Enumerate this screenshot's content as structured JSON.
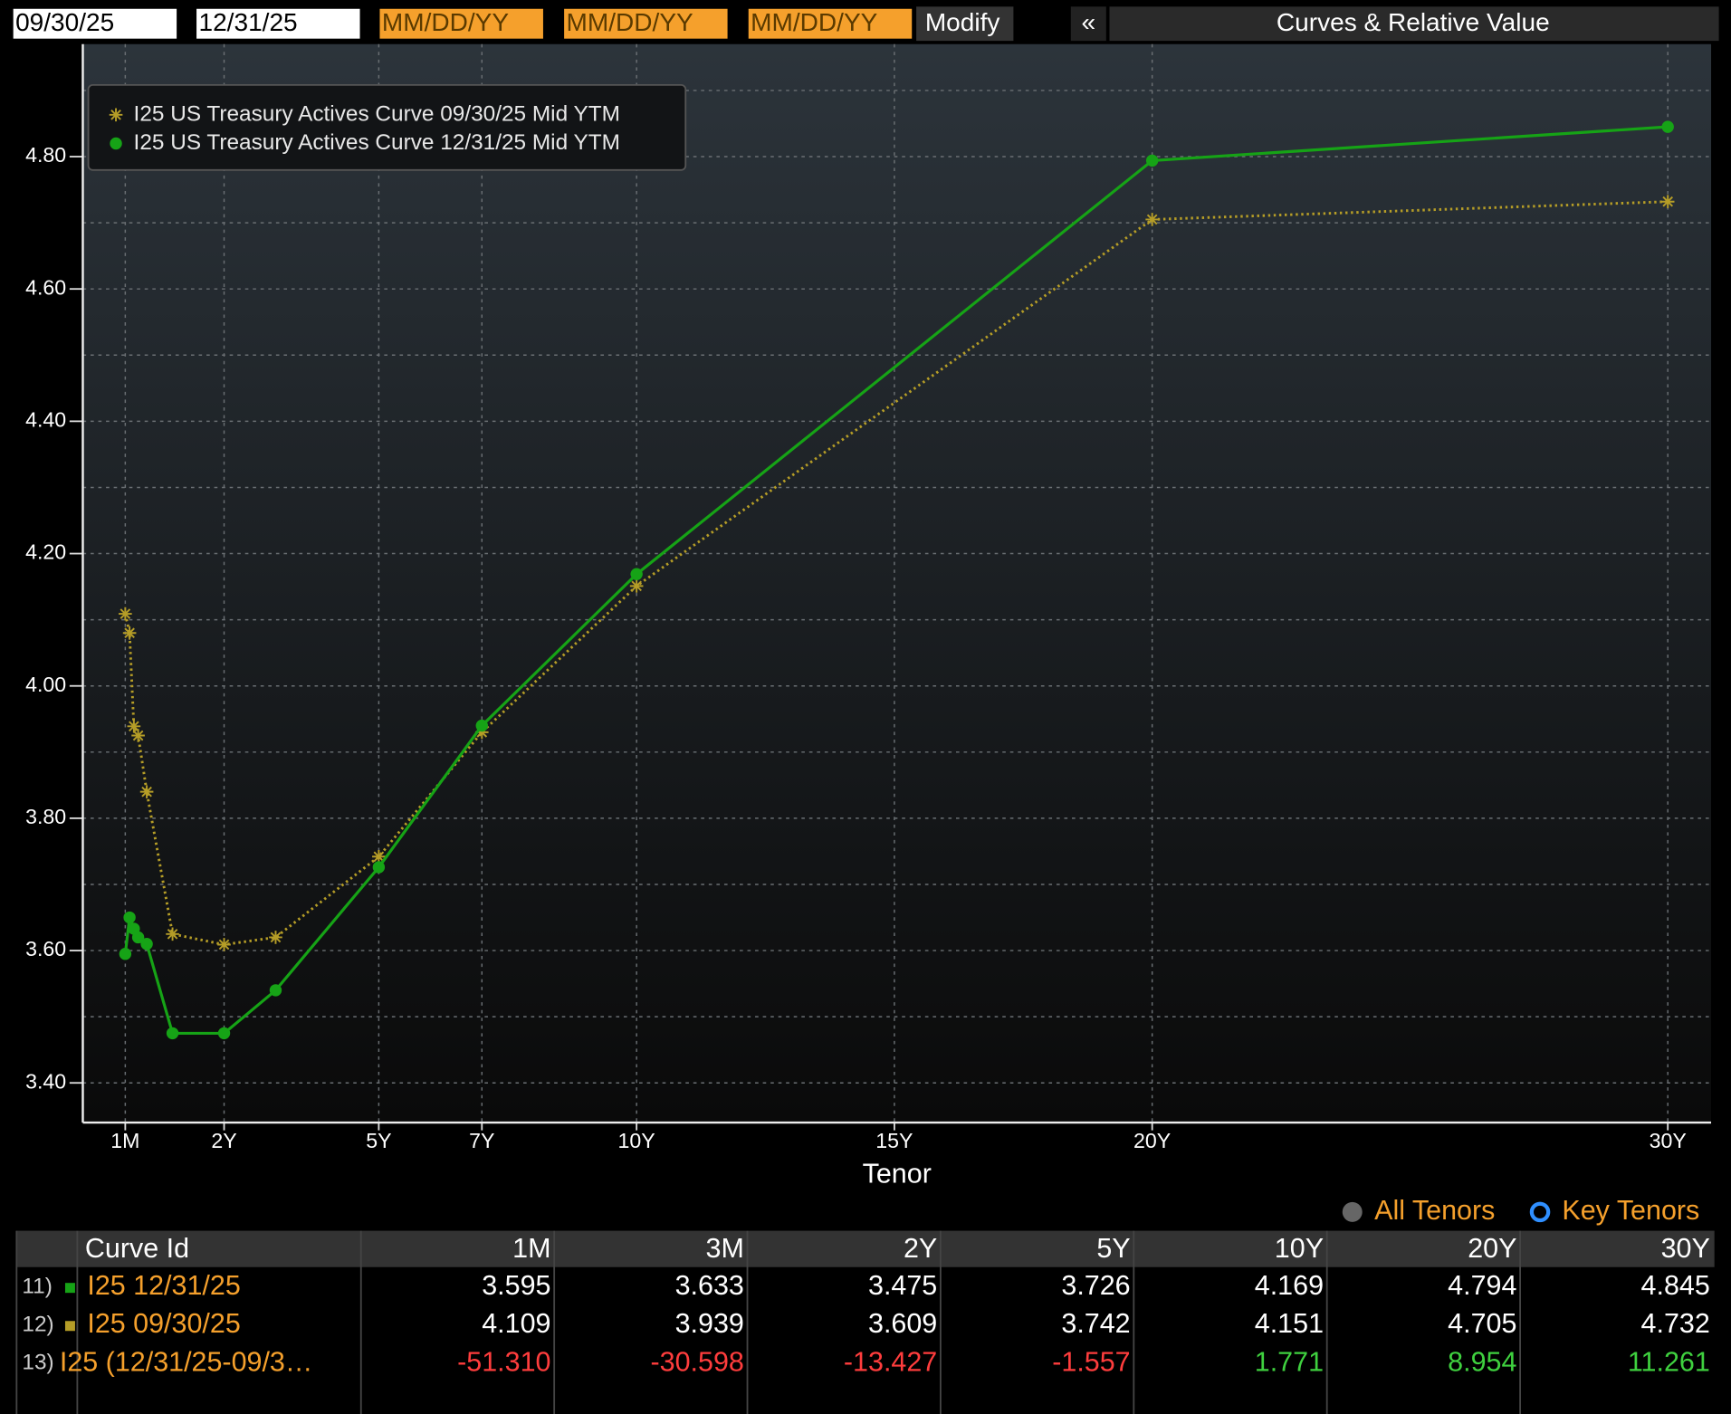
{
  "toolbar": {
    "date1": "09/30/25",
    "date2": "12/31/25",
    "date_placeholders": [
      "MM/DD/YY",
      "MM/DD/YY",
      "MM/DD/YY"
    ],
    "modify": "Modify",
    "collapse": "«",
    "title": "Curves & Relative Value"
  },
  "chart_data": {
    "type": "line",
    "x_label": "Tenor",
    "x": [
      0.0833,
      0.1667,
      0.25,
      0.3333,
      0.5,
      1,
      2,
      3,
      5,
      7,
      10,
      20,
      30
    ],
    "series": [
      {
        "name": "I25 US Treasury Actives Curve 09/30/25 Mid YTM",
        "color": "#b59d27",
        "marker": "asterisk",
        "style": "dotted",
        "values": [
          4.109,
          4.08,
          3.939,
          3.925,
          3.84,
          3.625,
          3.609,
          3.62,
          3.742,
          3.93,
          4.151,
          4.705,
          4.732
        ]
      },
      {
        "name": "I25 US Treasury Actives Curve 12/31/25 Mid YTM",
        "color": "#16a316",
        "marker": "circle",
        "style": "solid",
        "values": [
          3.595,
          3.65,
          3.633,
          3.62,
          3.61,
          3.475,
          3.475,
          3.54,
          3.726,
          3.94,
          4.169,
          4.794,
          4.845
        ]
      }
    ],
    "xlim": [
      -0.74,
      30.84
    ],
    "xticks": [
      {
        "value": 0.0833,
        "label": "1M"
      },
      {
        "value": 2,
        "label": "2Y"
      },
      {
        "value": 5,
        "label": "5Y"
      },
      {
        "value": 7,
        "label": "7Y"
      },
      {
        "value": 10,
        "label": "10Y"
      },
      {
        "value": 15,
        "label": "15Y"
      },
      {
        "value": 20,
        "label": "20Y"
      },
      {
        "value": 30,
        "label": "30Y"
      }
    ],
    "ylim": [
      3.34,
      4.97
    ],
    "yticks": [
      {
        "value": 3.4,
        "label": "3.40"
      },
      {
        "value": 3.6,
        "label": "3.60"
      },
      {
        "value": 3.8,
        "label": "3.80"
      },
      {
        "value": 4.0,
        "label": "4.00"
      },
      {
        "value": 4.2,
        "label": "4.20"
      },
      {
        "value": 4.4,
        "label": "4.40"
      },
      {
        "value": 4.6,
        "label": "4.60"
      },
      {
        "value": 4.8,
        "label": "4.80"
      }
    ],
    "y_minor_ticks": [
      3.5,
      3.7,
      3.9,
      4.1,
      4.3,
      4.5,
      4.7,
      4.9
    ],
    "grid": true,
    "legend": "upper left"
  },
  "toggles": {
    "all": "All Tenors",
    "key": "Key Tenors"
  },
  "table": {
    "columns": [
      "Curve Id",
      "1M",
      "3M",
      "2Y",
      "5Y",
      "10Y",
      "20Y",
      "30Y"
    ],
    "rows": [
      {
        "index": "11)",
        "color": "#16a316",
        "cells": [
          "I25 12/31/25",
          "3.595",
          "3.633",
          "3.475",
          "3.726",
          "4.169",
          "4.794",
          "4.845"
        ]
      },
      {
        "index": "12)",
        "color": "#b59d27",
        "cells": [
          "I25 09/30/25",
          "4.109",
          "3.939",
          "3.609",
          "3.742",
          "4.151",
          "4.705",
          "4.732"
        ]
      },
      {
        "index": "13)",
        "cells": [
          "I25 (12/31/25-09/3…",
          "-51.310",
          "-30.598",
          "-13.427",
          "-1.557",
          "1.771",
          "8.954",
          "11.261"
        ]
      }
    ]
  }
}
